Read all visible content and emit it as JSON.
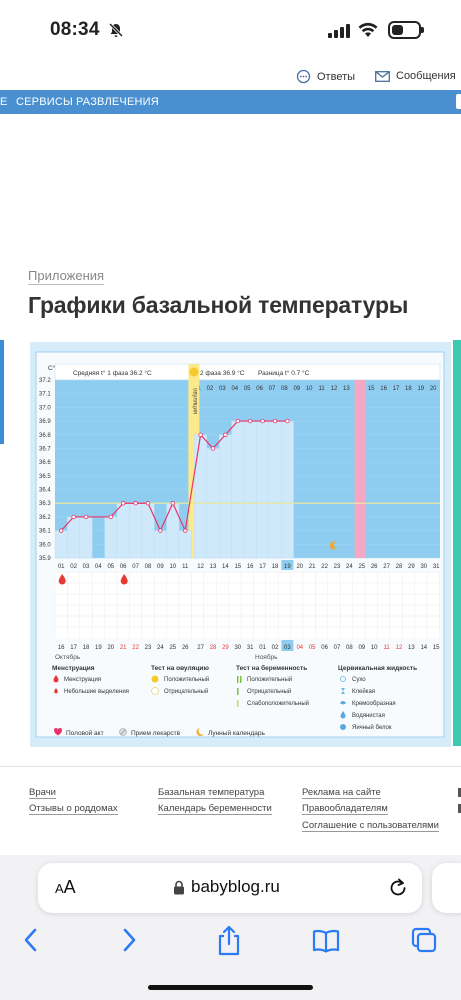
{
  "status_bar": {
    "time": "08:34",
    "icons": [
      "bell-muted-icon",
      "signal-icon",
      "wifi-icon",
      "battery-icon"
    ]
  },
  "top_links": {
    "answers": "Ответы",
    "messages": "Сообщения"
  },
  "nav": {
    "items": [
      "Е",
      "СЕРВИСЫ",
      "РАЗВЛЕЧЕНИЯ"
    ]
  },
  "page": {
    "breadcrumb": "Приложения",
    "title": "Графики базальной температуры"
  },
  "chart_data": {
    "type": "line",
    "unit_label": "C°",
    "phase1_label": "Средняя t° 1 фаза 36.2 °C",
    "phase2_label": "2 фаза 36.9 °C",
    "diff_label": "Разница t° 0.7 °C",
    "ovulation_label": "овуляция",
    "ylim": [
      35.9,
      37.2
    ],
    "yticks": [
      "37.2",
      "37.1",
      "37.0",
      "36.9",
      "36.8",
      "36.7",
      "36.6",
      "36.5",
      "36.4",
      "36.3",
      "36.2",
      "36.1",
      "36.0",
      "35.9"
    ],
    "cycle_days": [
      "01",
      "02",
      "03",
      "04",
      "05",
      "06",
      "07",
      "08",
      "09",
      "10",
      "11",
      "12",
      "13",
      "14",
      "15",
      "16",
      "17",
      "18",
      "19",
      "20",
      "21",
      "22",
      "23",
      "24",
      "25",
      "26",
      "27",
      "28",
      "29",
      "30",
      "31"
    ],
    "phase2_days": [
      "01",
      "02",
      "03",
      "04",
      "05",
      "06",
      "07",
      "08",
      "09",
      "10",
      "11",
      "12",
      "13",
      "14",
      "15",
      "16",
      "17",
      "18",
      "19",
      "20"
    ],
    "cycle_day_highlight": "19",
    "pink_day": "14",
    "temperatures": [
      36.1,
      36.2,
      36.2,
      null,
      36.2,
      36.3,
      36.3,
      36.3,
      36.1,
      36.3,
      36.1,
      36.8,
      36.7,
      36.8,
      36.9,
      36.9,
      36.9,
      36.9,
      36.9
    ],
    "average_line": 36.3,
    "menstruation_days": [
      1,
      6
    ],
    "moon_day": 23,
    "dates": [
      "16",
      "17",
      "18",
      "19",
      "20",
      "21",
      "22",
      "23",
      "24",
      "25",
      "26",
      "27",
      "28",
      "29",
      "30",
      "31",
      "01",
      "02",
      "03",
      "04",
      "05",
      "06",
      "07",
      "08",
      "09",
      "10",
      "11",
      "12",
      "13",
      "14",
      "15"
    ],
    "date_red": [
      "21",
      "22",
      "28",
      "29",
      "04",
      "05",
      "11",
      "12"
    ],
    "date_highlight": "03",
    "months": [
      "Октябрь",
      "Ноябрь"
    ],
    "legend": {
      "menstruation": {
        "title": "Менструация",
        "items": [
          "Менструация",
          "Небольшие выделения"
        ]
      },
      "ovulation_test": {
        "title": "Тест на овуляцию",
        "items": [
          "Положительный",
          "Отрицательный"
        ]
      },
      "pregnancy_test": {
        "title": "Тест на беременность",
        "items": [
          "Положительный",
          "Отрицательный",
          "Слабоположительный"
        ]
      },
      "cervical": {
        "title": "Цервикальная жидкость",
        "items": [
          "Сухо",
          "Клейкая",
          "Кремообразная",
          "Водянистая",
          "Яичный белок"
        ]
      },
      "bottom": [
        "Половой акт",
        "Прием лекарств",
        "Лунный календарь"
      ]
    },
    "colors": {
      "plot_bg": "#8fcdf0",
      "bar": "#cfe9fa",
      "line": "#e8336b",
      "ovulation": "#fbe98a",
      "pink": "#f5a8c4",
      "avg": "#e8e6a0"
    }
  },
  "footer": {
    "col1": [
      "Врачи",
      "Отзывы о роддомах"
    ],
    "col2": [
      "Базальная температура",
      "Календарь беременности"
    ],
    "col3": [
      "Реклама на сайте",
      "Правообладателям",
      "Соглашение с пользователями"
    ]
  },
  "safari": {
    "text_size": "AA",
    "url": "babyblog.ru"
  }
}
